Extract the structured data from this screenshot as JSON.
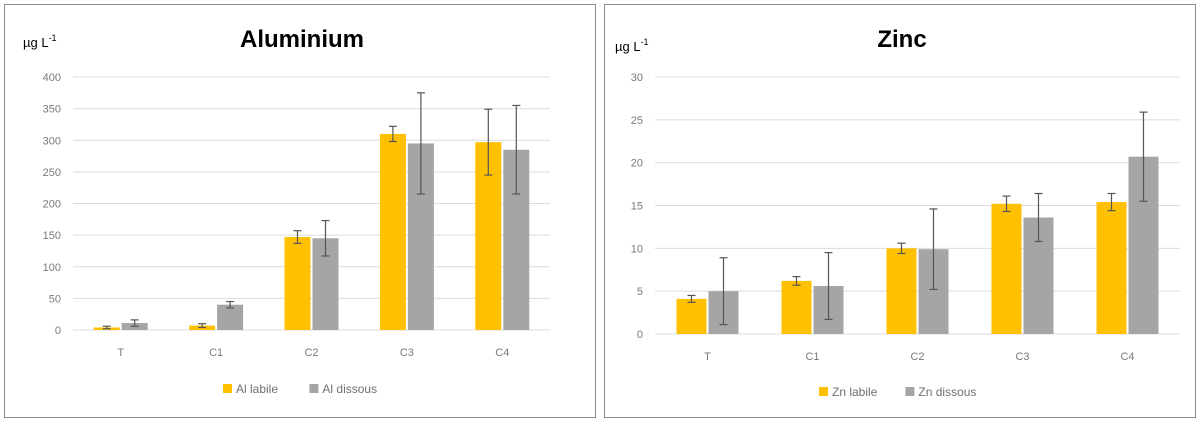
{
  "chart_data": [
    {
      "type": "bar",
      "title": "Aluminium",
      "unit_label": "µg L",
      "unit_exp": "-1",
      "categories": [
        "T",
        "C1",
        "C2",
        "C3",
        "C4"
      ],
      "ylim": [
        0,
        400
      ],
      "yticks": [
        0,
        50,
        100,
        150,
        200,
        250,
        300,
        350,
        400
      ],
      "grid": true,
      "legend_position": "bottom",
      "series": [
        {
          "name": "Al labile",
          "color": "#ffc000",
          "values": [
            4,
            7,
            147,
            310,
            297
          ],
          "errors": [
            2,
            3,
            10,
            12,
            52
          ]
        },
        {
          "name": "Al dissous",
          "color": "#a5a5a5",
          "values": [
            11,
            40,
            145,
            295,
            285
          ],
          "errors": [
            5,
            5,
            28,
            80,
            70
          ]
        }
      ]
    },
    {
      "type": "bar",
      "title": "Zinc",
      "unit_label": "µg L",
      "unit_exp": "-1",
      "categories": [
        "T",
        "C1",
        "C2",
        "C3",
        "C4"
      ],
      "ylim": [
        0,
        30
      ],
      "yticks": [
        0,
        5,
        10,
        15,
        20,
        25,
        30
      ],
      "grid": true,
      "legend_position": "bottom",
      "series": [
        {
          "name": "Zn labile",
          "color": "#ffc000",
          "values": [
            4.1,
            6.2,
            10.0,
            15.2,
            15.4
          ],
          "errors": [
            0.4,
            0.5,
            0.6,
            0.9,
            1.0
          ]
        },
        {
          "name": "Zn dissous",
          "color": "#a5a5a5",
          "values": [
            5.0,
            5.6,
            9.9,
            13.6,
            20.7
          ],
          "errors": [
            3.9,
            3.9,
            4.7,
            2.8,
            5.2
          ]
        }
      ]
    }
  ]
}
